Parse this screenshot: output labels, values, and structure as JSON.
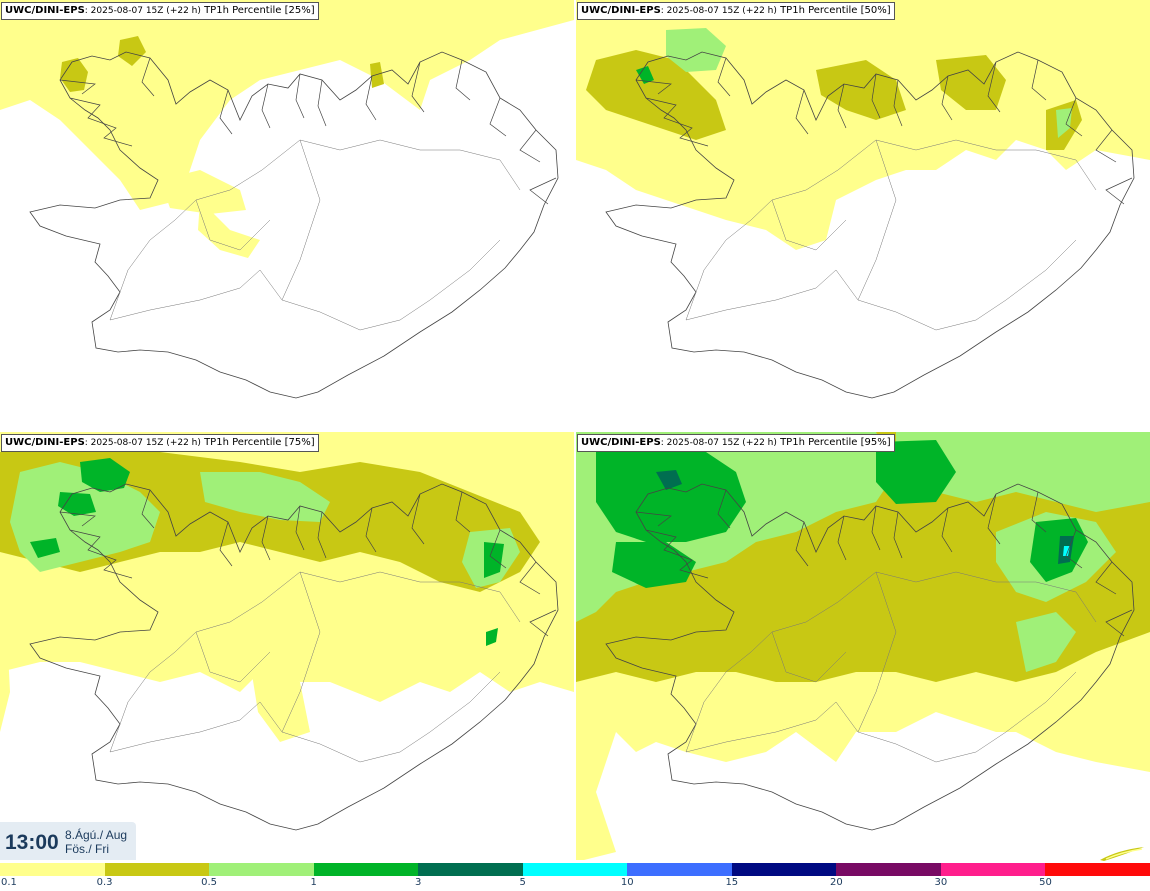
{
  "panels": [
    {
      "model": "UWC/DINI-EPS",
      "run": ": 2025-08-07 15Z (+22 h)",
      "product": " TP1h Percentile [25%]"
    },
    {
      "model": "UWC/DINI-EPS",
      "run": ": 2025-08-07 15Z (+22 h)",
      "product": " TP1h Percentile [50%]"
    },
    {
      "model": "UWC/DINI-EPS",
      "run": ": 2025-08-07 15Z (+22 h)",
      "product": " TP1h Percentile [75%]"
    },
    {
      "model": "UWC/DINI-EPS",
      "run": ": 2025-08-07 15Z (+22 h)",
      "product": " TP1h Percentile [95%]"
    }
  ],
  "valid_time": {
    "time": "13:00",
    "date_line": "8.Ágú./ Aug",
    "day_line": "Fös./ Fri"
  },
  "colorbar": {
    "colors": [
      "#ffff8c",
      "#c8c814",
      "#a0f078",
      "#00b428",
      "#006e50",
      "#00ffff",
      "#3c6eff",
      "#000a82",
      "#780a64",
      "#ff1e8c",
      "#ff0a0a"
    ],
    "ticks": [
      "0.1",
      "0.3",
      "0.5",
      "1",
      "3",
      "5",
      "10",
      "15",
      "20",
      "30",
      "50"
    ]
  }
}
